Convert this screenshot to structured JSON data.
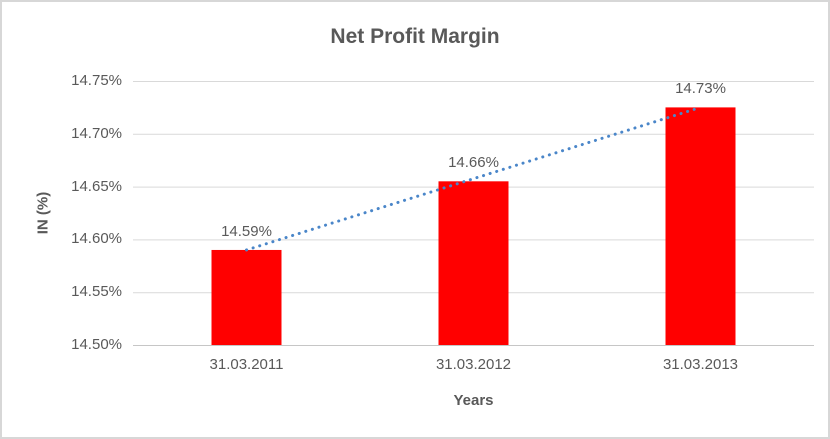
{
  "chart_data": {
    "type": "bar",
    "title": "Net Profit Margin",
    "categories": [
      "31.03.2011",
      "31.03.2012",
      "31.03.2013"
    ],
    "values": [
      14.59,
      14.655,
      14.725
    ],
    "data_labels": [
      "14.59%",
      "14.66%",
      "14.73%"
    ],
    "xlabel": "Years",
    "ylabel": "IN (%)",
    "ylim": [
      14.5,
      14.75
    ],
    "ytick_step": 0.05,
    "ytick_labels": [
      "14.50%",
      "14.55%",
      "14.60%",
      "14.65%",
      "14.70%",
      "14.75%"
    ],
    "bar_color": "#FF0000",
    "trendline": {
      "type": "linear",
      "style": "round-dot",
      "color": "#4A86C9"
    },
    "grid": true,
    "legend": "none",
    "colors": {
      "text": "#595959",
      "gridline": "#D9D9D9",
      "axis_line": "#C6C6C6",
      "border": "#D7D7D7"
    }
  }
}
